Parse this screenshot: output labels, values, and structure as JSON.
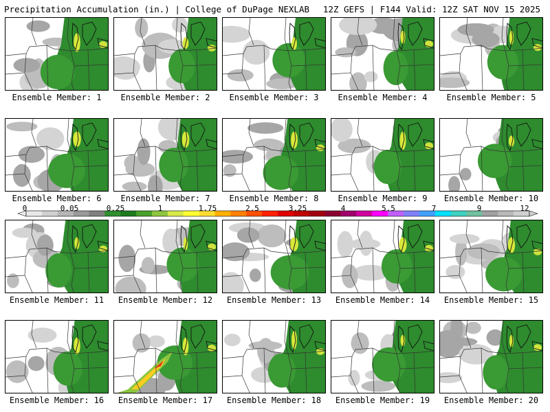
{
  "header": {
    "title": "Precipitation Accumulation (in.) | College of DuPage NEXLAB",
    "run_info": "12Z GEFS | F144 Valid: 12Z SAT NOV 15 2025"
  },
  "colorbar": {
    "tick_labels": [
      "0",
      "0.05",
      "0.25",
      "1",
      "1.75",
      "2.5",
      "3.25",
      "4",
      "5.5",
      "7",
      "9",
      "12"
    ],
    "colors": [
      "#e8e8e8",
      "#d0d0d0",
      "#b6b6b6",
      "#9a9a9a",
      "#808080",
      "#2f8f2f",
      "#1e7a1e",
      "#49a12b",
      "#8cc63f",
      "#d6e84a",
      "#ffff33",
      "#ffdd33",
      "#ffb000",
      "#ff8000",
      "#ff5000",
      "#ff2000",
      "#e00000",
      "#c00000",
      "#a00010",
      "#8a0030",
      "#a0006a",
      "#d000a0",
      "#ff00ff",
      "#c060ff",
      "#8080ff",
      "#40a0ff",
      "#00e0ff",
      "#40d0c0",
      "#70c0a0",
      "#a0a0a0",
      "#b8b8b8",
      "#d0d0d0"
    ]
  },
  "panels": [
    {
      "label": "Ensemble Member: 1"
    },
    {
      "label": "Ensemble Member: 2"
    },
    {
      "label": "Ensemble Member: 3"
    },
    {
      "label": "Ensemble Member: 4"
    },
    {
      "label": "Ensemble Member: 5"
    },
    {
      "label": "Ensemble Member: 6"
    },
    {
      "label": "Ensemble Member: 7"
    },
    {
      "label": "Ensemble Member: 8"
    },
    {
      "label": "Ensemble Member: 9"
    },
    {
      "label": "Ensemble Member: 10"
    },
    {
      "label": "Ensemble Member: 11"
    },
    {
      "label": "Ensemble Member: 12"
    },
    {
      "label": "Ensemble Member: 13"
    },
    {
      "label": "Ensemble Member: 14"
    },
    {
      "label": "Ensemble Member: 15"
    },
    {
      "label": "Ensemble Member: 16"
    },
    {
      "label": "Ensemble Member: 17"
    },
    {
      "label": "Ensemble Member: 18"
    },
    {
      "label": "Ensemble Member: 19"
    },
    {
      "label": "Ensemble Member: 20"
    }
  ]
}
